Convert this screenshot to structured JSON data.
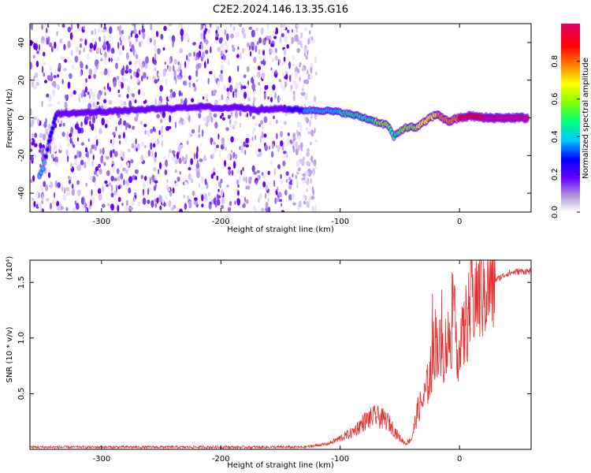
{
  "title": "C2E2.2024.146.13.35.G16",
  "chart_data": [
    {
      "type": "heatmap",
      "xlabel": "Height of straight line (km)",
      "ylabel": "Frequency (Hz)",
      "xlim": [
        -360,
        60
      ],
      "ylim": [
        -50,
        50
      ],
      "xticks": [
        -300,
        -200,
        -100,
        0
      ],
      "xtick_labels": [
        "-300",
        "-200",
        "-100",
        "0"
      ],
      "yticks": [
        -40,
        -20,
        0,
        20,
        40
      ],
      "ytick_labels": [
        "-40",
        "-20",
        "0",
        "20",
        "40"
      ],
      "colorbar": {
        "label": "Normalized spectral amplitude",
        "range": [
          0,
          1
        ],
        "ticks": [
          0.0,
          0.2,
          0.4,
          0.6,
          0.8
        ],
        "tick_labels": [
          "0.0",
          "0.2",
          "0.4",
          "0.6",
          "0.8"
        ],
        "colors": [
          "#ffffff",
          "#b39ddb",
          "#6a00ff",
          "#0000ff",
          "#00c8ff",
          "#00ff80",
          "#80ff00",
          "#ffff00",
          "#ff8000",
          "#ff0000",
          "#e0006a"
        ]
      },
      "noise_region_x": [
        -360,
        -120
      ],
      "signal_track": [
        {
          "x": -352,
          "y": -31,
          "amp": 0.35
        },
        {
          "x": -348,
          "y": -24,
          "amp": 0.35
        },
        {
          "x": -344,
          "y": -13,
          "amp": 0.3
        },
        {
          "x": -341,
          "y": -5,
          "amp": 0.25
        },
        {
          "x": -338,
          "y": 2,
          "amp": 0.25
        },
        {
          "x": -215,
          "y": 6,
          "amp": 0.2
        },
        {
          "x": -200,
          "y": 5,
          "amp": 0.2
        },
        {
          "x": -185,
          "y": 6,
          "amp": 0.2
        },
        {
          "x": -170,
          "y": 4,
          "amp": 0.2
        },
        {
          "x": -150,
          "y": 5,
          "amp": 0.2
        },
        {
          "x": -130,
          "y": 4,
          "amp": 0.35
        },
        {
          "x": -115,
          "y": 4,
          "amp": 0.4
        },
        {
          "x": -100,
          "y": 3,
          "amp": 0.45
        },
        {
          "x": -85,
          "y": 1,
          "amp": 0.5
        },
        {
          "x": -70,
          "y": -2,
          "amp": 0.55
        },
        {
          "x": -60,
          "y": -4,
          "amp": 0.55
        },
        {
          "x": -55,
          "y": -10,
          "amp": 0.5
        },
        {
          "x": -45,
          "y": -5,
          "amp": 0.6
        },
        {
          "x": -35,
          "y": -5,
          "amp": 0.65
        },
        {
          "x": -25,
          "y": 0,
          "amp": 0.7
        },
        {
          "x": -18,
          "y": 2,
          "amp": 0.75
        },
        {
          "x": -10,
          "y": -2,
          "amp": 0.8
        },
        {
          "x": 0,
          "y": 0,
          "amp": 0.85
        },
        {
          "x": 10,
          "y": 1,
          "amp": 0.9
        },
        {
          "x": 20,
          "y": 0,
          "amp": 0.95
        },
        {
          "x": 40,
          "y": 0,
          "amp": 0.95
        },
        {
          "x": 58,
          "y": 0,
          "amp": 0.95
        }
      ]
    },
    {
      "type": "line",
      "xlabel": "Height of straight line (km)",
      "ylabel": "SNR (10 * v/v)",
      "yscale_label": "(x10⁴)",
      "xlim": [
        -360,
        60
      ],
      "ylim": [
        0,
        1.7
      ],
      "xticks": [
        -300,
        -200,
        -100,
        0
      ],
      "xtick_labels": [
        "-300",
        "-200",
        "-100",
        "0"
      ],
      "yticks": [
        0.5,
        1.0,
        1.5
      ],
      "ytick_labels": [
        "0.5",
        "1.0",
        "1.5"
      ],
      "series": [
        {
          "color": "#e53030",
          "x": [
            -360,
            -300,
            -200,
            -130,
            -110,
            -100,
            -90,
            -80,
            -70,
            -60,
            -50,
            -45,
            -40,
            -35,
            -30,
            -25,
            -20,
            -15,
            -10,
            -5,
            0,
            5,
            10,
            20,
            30,
            40,
            50,
            60
          ],
          "y": [
            0.02,
            0.02,
            0.02,
            0.02,
            0.05,
            0.1,
            0.15,
            0.25,
            0.3,
            0.25,
            0.1,
            0.05,
            0.1,
            0.35,
            0.45,
            0.65,
            1.0,
            0.85,
            0.95,
            1.15,
            0.85,
            1.1,
            1.35,
            1.45,
            1.52,
            1.58,
            1.6,
            1.6
          ]
        }
      ]
    }
  ]
}
